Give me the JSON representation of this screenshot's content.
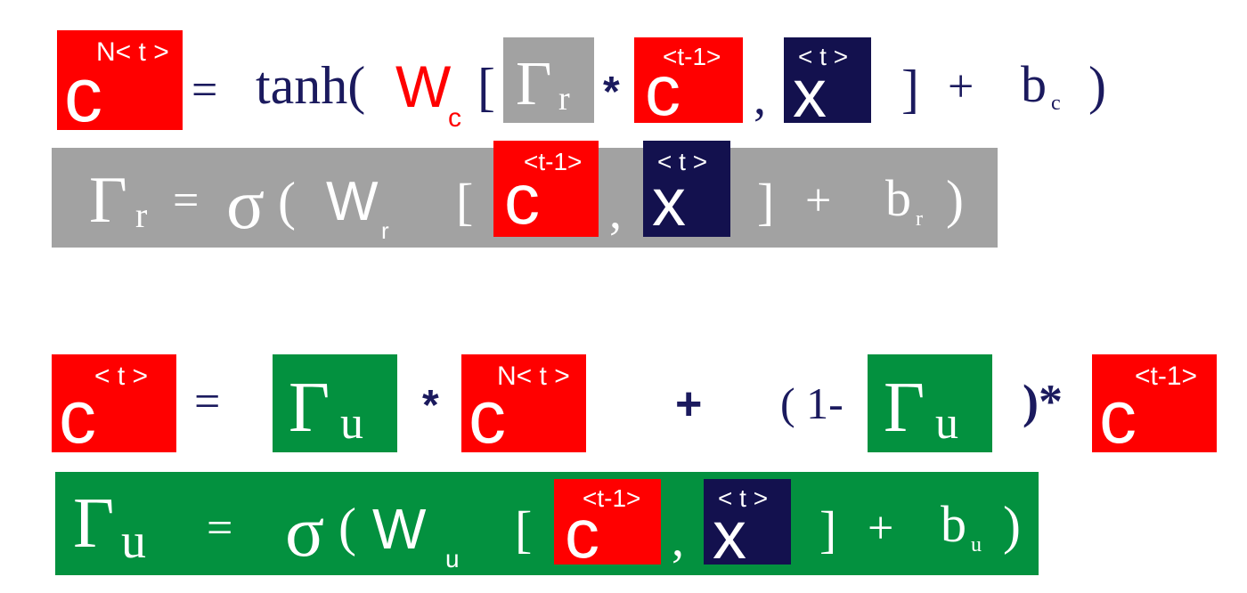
{
  "symbols": {
    "c": "c",
    "x": "x",
    "gamma": "Γ",
    "r": "r",
    "u": "u",
    "sigma": "σ",
    "W": "W",
    "b": "b"
  },
  "superscripts": {
    "candidate": "N< t >",
    "current": "< t >",
    "previous": "<t-1>"
  },
  "subscripts": {
    "c": "c",
    "r": "r",
    "u": "u"
  },
  "operators": {
    "equals": "=",
    "times": "*",
    "plus": "+",
    "comma": ",",
    "open_bracket": "[",
    "close_bracket": "]",
    "open_paren": "(",
    "close_paren": ")",
    "tanh_open": "tanh(",
    "one_minus": "( 1-",
    "close_paren_times": ")*"
  },
  "colors": {
    "red": "#ff0000",
    "navy": "#13114e",
    "gray": "#a2a2a2",
    "green": "#03913f",
    "text": "#1b1a5e"
  }
}
